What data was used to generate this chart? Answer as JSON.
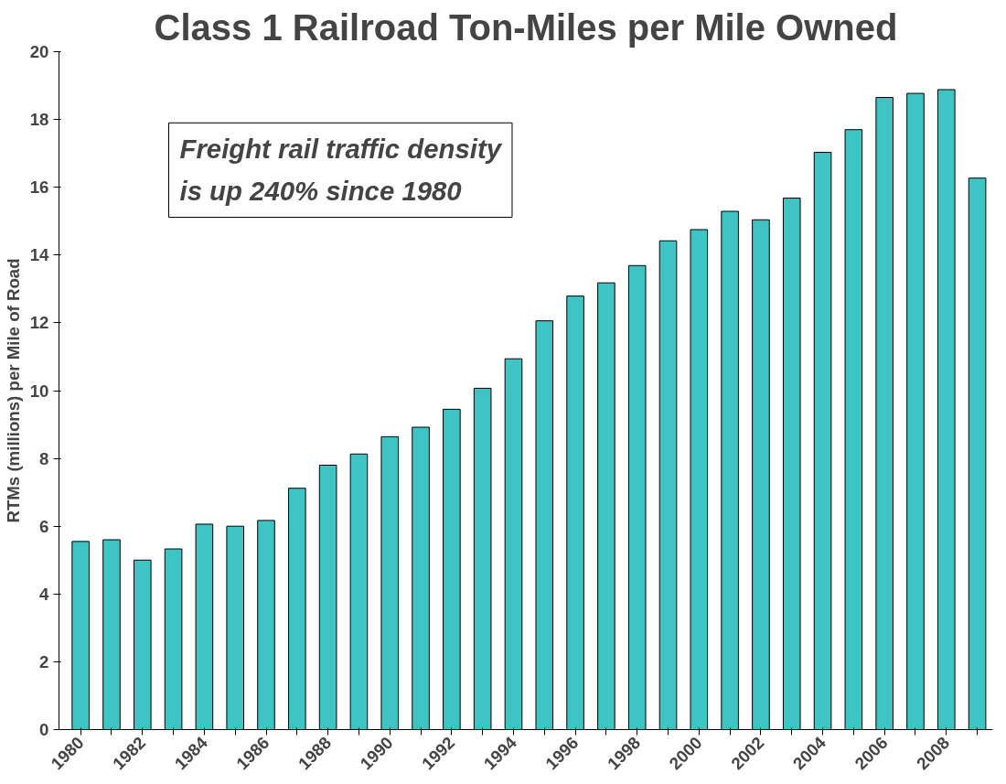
{
  "chart_data": {
    "type": "bar",
    "title": "Class 1 Railroad Ton-Miles per Mile Owned",
    "ylabel": "RTMs (millions) per Mile of Road",
    "categories": [
      "1980",
      null,
      "1982",
      null,
      "1984",
      null,
      "1986",
      null,
      "1988",
      null,
      "1990",
      null,
      "1992",
      null,
      "1994",
      null,
      "1996",
      null,
      "1998",
      null,
      "2000",
      null,
      "2002",
      null,
      "2004",
      null,
      "2006",
      null,
      "2008",
      null
    ],
    "values": [
      5.55,
      5.6,
      5.0,
      5.33,
      6.06,
      6.0,
      6.17,
      7.12,
      7.8,
      8.13,
      8.64,
      8.92,
      9.45,
      10.07,
      10.94,
      12.06,
      12.79,
      13.18,
      13.69,
      14.42,
      14.75,
      15.29,
      15.04,
      15.68,
      17.03,
      17.7,
      18.65,
      18.77,
      18.88,
      16.27
    ],
    "color": "#3fc3c3",
    "ylim": [
      0,
      20
    ],
    "yticks": [
      0,
      2,
      4,
      6,
      8,
      10,
      12,
      14,
      16,
      18,
      20
    ],
    "grid": false,
    "annotations": [
      "Freight rail traffic density\nis up 240% since 1980"
    ]
  }
}
